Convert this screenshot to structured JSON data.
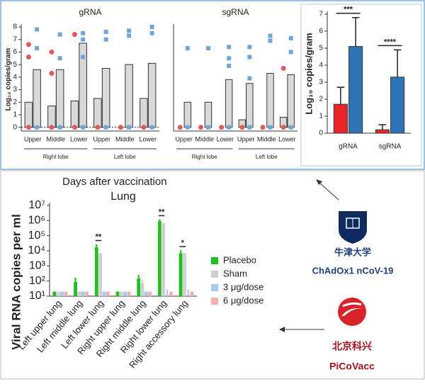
{
  "heading": "Days after vaccination",
  "vaccines": [
    {
      "institution": "牛津大学",
      "vaccine": "ChAdOx1 nCoV-19"
    },
    {
      "institution": "北京科兴",
      "vaccine": "PiCoVacc"
    }
  ],
  "chart_data": [
    {
      "type": "bar",
      "title": "gRNA",
      "y_label": "Log₁₀ copies/gram",
      "categories": [
        "Upper",
        "Middle",
        "Lower",
        "Upper",
        "Middle",
        "Lower"
      ],
      "groups": [
        "Right lobe",
        "Left lobe"
      ],
      "ylim": [
        -0.3,
        8
      ],
      "yticks": [
        0,
        1,
        2,
        3,
        4,
        5,
        6,
        7,
        8
      ],
      "series": [
        {
          "kind": "bar",
          "color": "#d9d9d9",
          "values": [
            2.0,
            1.7,
            2.1,
            2.3,
            null,
            2.3
          ]
        },
        {
          "kind": "bar",
          "color": "#d9d9d9",
          "values": [
            4.6,
            4.6,
            6.7,
            4.7,
            5.0,
            5.1
          ]
        },
        {
          "kind": "dot",
          "marker": "circle",
          "color": "#e05a5a",
          "values": [
            6.6,
            6.0,
            7.4,
            null,
            null,
            null
          ]
        },
        {
          "kind": "dot",
          "marker": "circle",
          "color": "#e05a5a",
          "values": [
            5.6,
            4.3,
            null,
            null,
            null,
            null
          ]
        },
        {
          "kind": "dot",
          "marker": "circle",
          "color": "#e05a5a",
          "values": [
            0,
            0,
            0,
            0,
            0,
            0
          ]
        },
        {
          "kind": "dot",
          "marker": "square",
          "color": "#6fa5d8",
          "values": [
            7.8,
            7.4,
            7.5,
            7.6,
            7.7,
            8.0
          ]
        },
        {
          "kind": "dot",
          "marker": "square",
          "color": "#6fa5d8",
          "values": [
            6.3,
            5.5,
            7.0,
            7.0,
            7.3,
            7.5
          ]
        },
        {
          "kind": "dot",
          "marker": "square",
          "color": "#6fa5d8",
          "values": [
            null,
            null,
            5.6,
            null,
            null,
            null
          ]
        },
        {
          "kind": "dot",
          "marker": "square",
          "color": "#6fa5d8",
          "values": [
            0,
            0,
            0,
            0,
            0,
            0
          ]
        }
      ]
    },
    {
      "type": "bar",
      "title": "sgRNA",
      "categories": [
        "Upper",
        "Middle",
        "Lower",
        "Upper",
        "Middle",
        "Lower"
      ],
      "groups": [
        "Right lobe",
        "Left lobe"
      ],
      "ylim": [
        -0.3,
        8
      ],
      "series": [
        {
          "kind": "bar",
          "color": "#d9d9d9",
          "values": [
            null,
            null,
            null,
            0.6,
            null,
            0.8
          ]
        },
        {
          "kind": "bar",
          "color": "#d9d9d9",
          "values": [
            2.0,
            2.0,
            3.8,
            3.5,
            4.3,
            4.2
          ]
        },
        {
          "kind": "dot",
          "marker": "circle",
          "color": "#e05a5a",
          "values": [
            null,
            null,
            null,
            null,
            null,
            4.7
          ]
        },
        {
          "kind": "dot",
          "marker": "circle",
          "color": "#e05a5a",
          "values": [
            0,
            0,
            0,
            0,
            0,
            0
          ]
        },
        {
          "kind": "dot",
          "marker": "square",
          "color": "#6fa5d8",
          "values": [
            6.3,
            6.3,
            6.4,
            6.4,
            7.3,
            7.1
          ]
        },
        {
          "kind": "dot",
          "marker": "square",
          "color": "#6fa5d8",
          "values": [
            null,
            null,
            5.5,
            5.6,
            6.9,
            6.0
          ]
        },
        {
          "kind": "dot",
          "marker": "square",
          "color": "#6fa5d8",
          "values": [
            null,
            null,
            4.9,
            3.9,
            null,
            null
          ]
        },
        {
          "kind": "dot",
          "marker": "square",
          "color": "#6fa5d8",
          "values": [
            0,
            0,
            0,
            0,
            0,
            0
          ]
        }
      ]
    },
    {
      "type": "bar",
      "y_label": "Log₁₀ copies/gram",
      "categories": [
        "gRNA",
        "sgRNA"
      ],
      "ylim": [
        0,
        7
      ],
      "yticks": [
        0,
        1,
        2,
        3,
        4,
        5,
        6,
        7
      ],
      "series": [
        {
          "color": "#e8262a",
          "values": [
            1.7,
            0.2
          ],
          "errors": [
            1.0,
            0.3
          ]
        },
        {
          "color": "#2f75b5",
          "values": [
            5.1,
            3.3
          ],
          "errors": [
            1.7,
            1.6
          ]
        }
      ],
      "annotations": [
        {
          "label": "***",
          "category": "gRNA"
        },
        {
          "label": "****",
          "category": "sgRNA"
        }
      ]
    },
    {
      "type": "bar",
      "title": "Lung",
      "y_label": "Viral RNA copies per ml",
      "log_scale": true,
      "categories": [
        "Left upper lung",
        "Left middle lung",
        "Left lower lung",
        "Right upper lung",
        "Right middle lung",
        "Right lower lung",
        "Right accessory lung"
      ],
      "ylim": [
        10,
        10000000
      ],
      "yticks": [
        {
          "value": 10,
          "label": "10¹"
        },
        {
          "value": 100,
          "label": "10²"
        },
        {
          "value": 1000,
          "label": "10³"
        },
        {
          "value": 10000,
          "label": "10⁴"
        },
        {
          "value": 100000,
          "label": "10⁵"
        },
        {
          "value": 1000000,
          "label": "10⁶"
        },
        {
          "value": 10000000,
          "label": "10⁷"
        }
      ],
      "legend": "right",
      "series": [
        {
          "name": "Placebo",
          "color": "#22c01e",
          "values": [
            20,
            90,
            17000,
            20,
            150,
            900000,
            7000
          ],
          "errors": [
            null,
            60,
            8000,
            null,
            80,
            200000,
            3000
          ]
        },
        {
          "name": "Sham",
          "color": "#cfcfcf",
          "values": [
            20,
            20,
            7000,
            20,
            70,
            700000,
            7000
          ],
          "errors": [
            null,
            null,
            null,
            null,
            40,
            null,
            null
          ]
        },
        {
          "name": "3 μg/dose",
          "color": "#a9c8f0",
          "values": [
            20,
            20,
            20,
            20,
            20,
            10,
            10
          ],
          "errors": [
            null,
            null,
            null,
            null,
            null,
            15,
            15
          ]
        },
        {
          "name": "6 μg/dose",
          "color": "#f4b0b0",
          "values": [
            20,
            20,
            20,
            20,
            20,
            20,
            20
          ]
        }
      ],
      "annotations": [
        {
          "label": "**",
          "category": "Left lower lung"
        },
        {
          "label": "**",
          "category": "Right lower lung"
        },
        {
          "label": "*",
          "category": "Right accessory lung"
        }
      ]
    }
  ]
}
